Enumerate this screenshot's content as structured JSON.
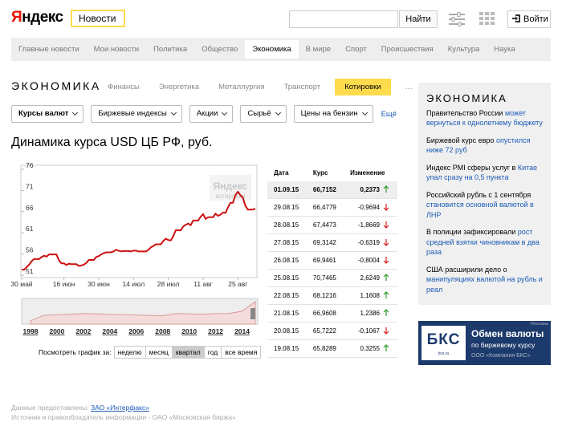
{
  "header": {
    "logo": "Яндекс",
    "service": "Новости",
    "search_button": "Найти",
    "login": "Войти"
  },
  "nav": {
    "items": [
      "Главные новости",
      "Мои новости",
      "Политика",
      "Общество",
      "Экономика",
      "В мире",
      "Спорт",
      "Происшествия",
      "Культура",
      "Наука"
    ],
    "active": 4
  },
  "section": {
    "title": "ЭКОНОМИКА",
    "tabs": [
      "Финансы",
      "Энергетика",
      "Металлургия",
      "Транспорт",
      "Котировки",
      "…"
    ],
    "active_tab": 4
  },
  "filters": {
    "items": [
      "Курсы валют",
      "Биржевые индексы",
      "Акции",
      "Сырьё",
      "Цены на бензин"
    ],
    "more": "Ещё"
  },
  "chart_data": [
    {
      "type": "line",
      "title": "Динамика курса USD ЦБ РФ, руб.",
      "color": "#cc1111",
      "watermark": {
        "logo": "Яндекс",
        "caption": "котировки"
      },
      "categories": [
        "30 май",
        null,
        null,
        null,
        null,
        null,
        null,
        null,
        null,
        null,
        null,
        null,
        null,
        null,
        null,
        null,
        null,
        "16 июн",
        null,
        null,
        null,
        null,
        null,
        null,
        null,
        null,
        null,
        null,
        null,
        null,
        null,
        "30 июн",
        null,
        null,
        null,
        null,
        null,
        null,
        null,
        null,
        null,
        null,
        null,
        null,
        null,
        "14 июл",
        null,
        null,
        null,
        null,
        null,
        null,
        null,
        null,
        null,
        null,
        null,
        null,
        null,
        "28 июл",
        null,
        null,
        null,
        null,
        null,
        null,
        null,
        null,
        null,
        null,
        null,
        null,
        null,
        "11 авг",
        null,
        null,
        null,
        null,
        null,
        null,
        null,
        null,
        null,
        null,
        null,
        null,
        null,
        "25 авг",
        null,
        null,
        null,
        null,
        null,
        null,
        null
      ],
      "values": [
        52.3,
        52.3,
        52.9,
        53.5,
        54.3,
        54.8,
        54.8,
        54.8,
        55.3,
        55.6,
        55.4,
        55.9,
        55.9,
        55.9,
        55.9,
        54.5,
        53.8,
        53.8,
        53.4,
        53.7,
        53.6,
        53.6,
        53.6,
        53.2,
        53.3,
        53.5,
        53.9,
        54.6,
        54.6,
        54.6,
        55.3,
        55.5,
        55.9,
        56.2,
        56.4,
        56.4,
        56.4,
        56.6,
        57.0,
        56.8,
        56.6,
        56.7,
        56.7,
        56.7,
        56.6,
        56.8,
        56.8,
        56.6,
        56.6,
        56.6,
        56.6,
        57.0,
        57.6,
        57.9,
        58.3,
        58.3,
        58.3,
        59.1,
        59.6,
        59.3,
        59.2,
        60.2,
        61.6,
        61.6,
        61.6,
        62.5,
        62.9,
        63.2,
        62.8,
        63.9,
        63.9,
        63.9,
        64.8,
        65.4,
        64.3,
        64.7,
        64.7,
        64.7,
        65.5,
        65.0,
        65.3,
        65.8,
        65.7,
        67.0,
        68.1,
        68.1,
        69.9,
        70.7,
        69.9,
        69.3,
        67.4,
        66.5,
        66.5,
        66.5,
        66.7
      ],
      "ylim": [
        51,
        76
      ],
      "yticks": [
        51,
        56,
        61,
        66,
        71,
        76
      ],
      "grid": false
    },
    {
      "type": "area",
      "color": "#d99a9a",
      "categories": [
        "1998",
        null,
        "2000",
        null,
        "2002",
        null,
        "2004",
        null,
        "2006",
        null,
        "2008",
        null,
        "2010",
        null,
        "2012",
        null,
        "2014",
        null
      ],
      "values": [
        9.7,
        26.0,
        28.2,
        29.2,
        31.3,
        30.7,
        28.8,
        28.3,
        27.2,
        25.6,
        24.9,
        31.7,
        30.4,
        29.4,
        31.1,
        31.8,
        38.4,
        66.7
      ]
    }
  ],
  "period": {
    "label": "Посмотреть график за:",
    "options": [
      "неделю",
      "месяц",
      "квартал",
      "год",
      "все время"
    ],
    "active": 2
  },
  "table": {
    "columns": [
      "Дата",
      "Курс",
      "Изменение"
    ],
    "rows": [
      [
        "01.09.15",
        "66,7152",
        "0,2373"
      ],
      [
        "29.08.15",
        "66,4779",
        "-0,9694"
      ],
      [
        "28.08.15",
        "67,4473",
        "-1,8669"
      ],
      [
        "27.08.15",
        "69,3142",
        "-0,6319"
      ],
      [
        "26.08.15",
        "69,9461",
        "-0,8004"
      ],
      [
        "25.08.15",
        "70,7465",
        "2,6249"
      ],
      [
        "22.08.15",
        "68,1216",
        "1,1608"
      ],
      [
        "21.08.15",
        "66,9608",
        "1,2386"
      ],
      [
        "20.08.15",
        "65,7222",
        "-0,1067"
      ],
      [
        "19.08.15",
        "65,8289",
        "0,3255"
      ]
    ]
  },
  "sidebar": {
    "title": "ЭКОНОМИКА",
    "items": [
      {
        "text": "Правительство России",
        "link": "может вернуться к однолетнему бюджету"
      },
      {
        "text": "Биржевой курс евро",
        "link": "опустился ниже 72 руб"
      },
      {
        "text": "Индекс PMI сферы услуг в",
        "link": "Китае упал сразу на 0,5 пункта"
      },
      {
        "text": "Российский рубль с 1 сентября",
        "link": "становится основной валютой в ЛНР"
      },
      {
        "text": "В полиции зафиксировали",
        "link": "рост средней взятки чиновникам в два раза"
      },
      {
        "text": "США расширили дело о",
        "link": "манипуляциях валютой на рубль и реал"
      }
    ]
  },
  "ad": {
    "logo": "БКС",
    "site": "bcs.ru",
    "tag": "Реклама",
    "title": "Обмен валюты",
    "subtitle": "по биржевому курсу",
    "company": "ООО «Компания БКС»"
  },
  "footer": {
    "provided": "Данные предоставлены:",
    "provider": "ЗАО «Интерфакс»",
    "source": "Источник и правообладатель информации - ОАО «Московская биржа»"
  }
}
